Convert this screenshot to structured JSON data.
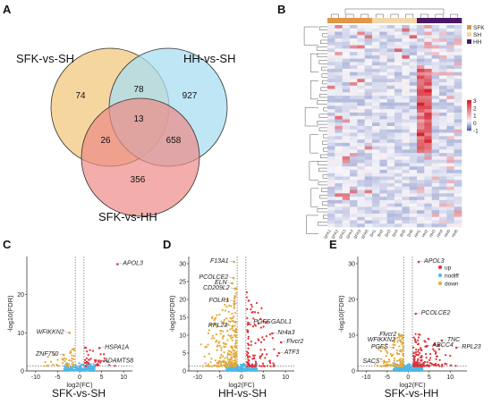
{
  "panels": {
    "a": "A",
    "b": "B",
    "c": "C",
    "d": "D",
    "e": "E"
  },
  "colors": {
    "venn_sfk_sh": "#f4cf8e",
    "venn_hh_sh": "#a8ddf2",
    "venn_sfk_hh": "#ee8a86",
    "up": "#e0303a",
    "nodiff": "#4fb7e6",
    "down": "#e2a93a",
    "heat_high": "#d7222e",
    "heat_low": "#3a4fa8",
    "group_sfk": "#e3954a",
    "group_sh": "#f2d6ac",
    "group_hh": "#4b1866"
  },
  "chart_data": [
    {
      "type": "venn",
      "sets": [
        "SFK-vs-SH",
        "HH-vs-SH",
        "SFK-vs-HH"
      ],
      "regions": {
        "sfk_sh_only": "74",
        "hh_sh_only": "927",
        "sfk_hh_only": "356",
        "sfk_sh_and_hh_sh": "78",
        "sfk_sh_and_sfk_hh": "26",
        "hh_sh_and_sfk_hh": "658",
        "all_three": "13"
      }
    },
    {
      "type": "heatmap",
      "legend": [
        "SFK",
        "SH",
        "HH"
      ],
      "colorbar_ticks": [
        "3",
        "2",
        "1",
        "0",
        "-1"
      ],
      "column_labels": [
        "SFK1",
        "SFK2",
        "SFK3",
        "SFK4",
        "SFK5",
        "SFK6",
        "SH1",
        "SH2",
        "SH3",
        "SH4",
        "SH5",
        "SH6",
        "HH1",
        "HH2",
        "HH3",
        "HH4",
        "HH5",
        "HH6"
      ],
      "groups": [
        "SFK",
        "SFK",
        "SFK",
        "SFK",
        "SFK",
        "SFK",
        "SH",
        "SH",
        "SH",
        "SH",
        "SH",
        "SH",
        "HH",
        "HH",
        "HH",
        "HH",
        "HH",
        "HH"
      ],
      "rows": 60
    },
    {
      "type": "scatter",
      "caption": "SFK-vs-SH",
      "xlabel": "log2(FC)",
      "ylabel": "-log10(FDR)",
      "xlim": [
        -12,
        12
      ],
      "ylim": [
        0,
        30
      ],
      "xticks": [
        "-10",
        "-5",
        "0",
        "5",
        "10"
      ],
      "yticks": [
        "0",
        "10",
        "20"
      ],
      "thresholds_x": [
        -1,
        1
      ],
      "threshold_y": 1.3,
      "genes": [
        {
          "name": "APOL3",
          "x": 8.6,
          "y": 28
        },
        {
          "name": "WFIKKN2",
          "x": -2.3,
          "y": 10
        },
        {
          "name": "ZNF750",
          "x": -3.6,
          "y": 4.2
        },
        {
          "name": "HSPA1A",
          "x": 4.5,
          "y": 6
        },
        {
          "name": "ADAMTS8",
          "x": 4.3,
          "y": 2.5
        }
      ],
      "counts": {
        "down": 40,
        "up": 40,
        "nodiff": 220
      },
      "spread": {
        "down": [
          -9,
          -1.2
        ],
        "up": [
          1.2,
          9
        ],
        "maxY": 5
      }
    },
    {
      "type": "scatter",
      "caption": "HH-vs-SH",
      "xlabel": "log2(FC)",
      "ylabel": "-log10(FDR)",
      "xlim": [
        -12,
        12
      ],
      "ylim": [
        0,
        32
      ],
      "xticks": [
        "-10",
        "-5",
        "0",
        "5",
        "10"
      ],
      "yticks": [
        "0",
        "5",
        "10",
        "15",
        "20",
        "25",
        "30"
      ],
      "thresholds_x": [
        -1,
        1
      ],
      "threshold_y": 1.3,
      "genes": [
        {
          "name": "F13A1",
          "x": -1.7,
          "y": 30.5
        },
        {
          "name": "PCOLCE2",
          "x": -1.8,
          "y": 26
        },
        {
          "name": "ELN",
          "x": -2.1,
          "y": 24.5
        },
        {
          "name": "CD209L2",
          "x": -1.5,
          "y": 23
        },
        {
          "name": "FOLR1",
          "x": -1.6,
          "y": 19.5
        },
        {
          "name": "RPL23",
          "x": -2.0,
          "y": 12.5
        },
        {
          "name": "PGFS",
          "x": 1.5,
          "y": 13.5
        },
        {
          "name": "GADL1",
          "x": 5.5,
          "y": 13.5
        },
        {
          "name": "Nr4a3",
          "x": 7.0,
          "y": 10.5
        },
        {
          "name": "Flvcr2",
          "x": 9.0,
          "y": 8.0
        },
        {
          "name": "ATF3",
          "x": 8.5,
          "y": 5.0
        }
      ],
      "counts": {
        "down": 260,
        "up": 110,
        "nodiff": 320
      },
      "spread": {
        "down": [
          -10,
          -1.2
        ],
        "up": [
          1.2,
          9
        ],
        "maxY": 22
      }
    },
    {
      "type": "scatter",
      "caption": "SFK-vs-HH",
      "xlabel": "log2(FC)",
      "ylabel": "-log10(FDR)",
      "xlim": [
        -12,
        14
      ],
      "ylim": [
        0,
        32
      ],
      "xticks": [
        "-10",
        "-5",
        "0",
        "5",
        "10"
      ],
      "yticks": [
        "0",
        "10",
        "20",
        "30"
      ],
      "thresholds_x": [
        -1,
        1
      ],
      "threshold_y": 1.3,
      "legend": [
        "up",
        "nodiff",
        "down"
      ],
      "genes": [
        {
          "name": "APOL3",
          "x": 2.5,
          "y": 30.5
        },
        {
          "name": "PCOLCE2",
          "x": 1.8,
          "y": 16
        },
        {
          "name": "Flvcr2",
          "x": -1.5,
          "y": 10
        },
        {
          "name": "WFIKKN2",
          "x": -1.8,
          "y": 8.5
        },
        {
          "name": "TNC",
          "x": 8.0,
          "y": 8.5
        },
        {
          "name": "ABCC4",
          "x": 4.5,
          "y": 7
        },
        {
          "name": "RPL23",
          "x": 11.5,
          "y": 6.5
        },
        {
          "name": "PGFS",
          "x": -3.5,
          "y": 6.5
        },
        {
          "name": "SACS",
          "x": -5.5,
          "y": 2.5
        }
      ],
      "counts": {
        "down": 110,
        "up": 150,
        "nodiff": 320
      },
      "spread": {
        "down": [
          -9,
          -1.2
        ],
        "up": [
          1.2,
          12
        ],
        "maxY": 10
      }
    }
  ]
}
